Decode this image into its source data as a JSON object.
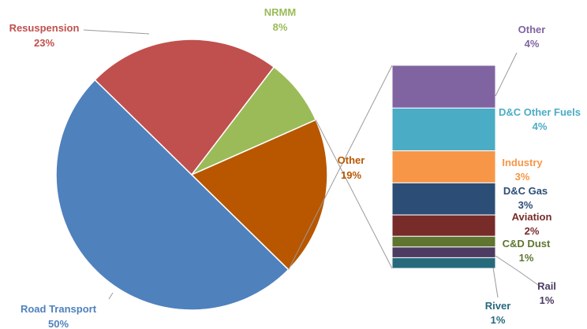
{
  "chart_data": {
    "type": "pie",
    "subtype": "bar-of-pie",
    "title": "",
    "slices": [
      {
        "name": "Road Transport",
        "value": 50,
        "label": "Road Transport",
        "pct": "50%",
        "color": "#4f81bd"
      },
      {
        "name": "Resuspension",
        "value": 23,
        "label": "Resuspension",
        "pct": "23%",
        "color": "#c0504d"
      },
      {
        "name": "NRMM",
        "value": 8,
        "label": "NRMM",
        "pct": "8%",
        "color": "#9bbb59"
      },
      {
        "name": "Other",
        "value": 19,
        "label": "Other",
        "pct": "19%",
        "color": "#b85700"
      }
    ],
    "breakdown": [
      {
        "name": "Other",
        "value": 4,
        "label": "Other",
        "pct": "4%",
        "color": "#8064a2",
        "label_color": "#8064a2"
      },
      {
        "name": "D&C Other Fuels",
        "value": 4,
        "label": "D&C Other Fuels",
        "pct": "4%",
        "color": "#4bacc6",
        "label_color": "#4bacc6"
      },
      {
        "name": "Industry",
        "value": 3,
        "label": "Industry",
        "pct": "3%",
        "color": "#f79646",
        "label_color": "#f79646"
      },
      {
        "name": "D&C Gas",
        "value": 3,
        "label": "D&C Gas",
        "pct": "3%",
        "color": "#2c4d75",
        "label_color": "#2c4d75"
      },
      {
        "name": "Aviation",
        "value": 2,
        "label": "Aviation",
        "pct": "2%",
        "color": "#772c2a",
        "label_color": "#772c2a"
      },
      {
        "name": "C&D Dust",
        "value": 1,
        "label": "C&D Dust",
        "pct": "1%",
        "color": "#5f7530",
        "label_color": "#5f7530"
      },
      {
        "name": "Rail",
        "value": 1,
        "label": "Rail",
        "pct": "1%",
        "color": "#4d3b62",
        "label_color": "#4d3b62"
      },
      {
        "name": "River",
        "value": 1,
        "label": "River",
        "pct": "1%",
        "color": "#276a7c",
        "label_color": "#276a7c"
      }
    ]
  }
}
